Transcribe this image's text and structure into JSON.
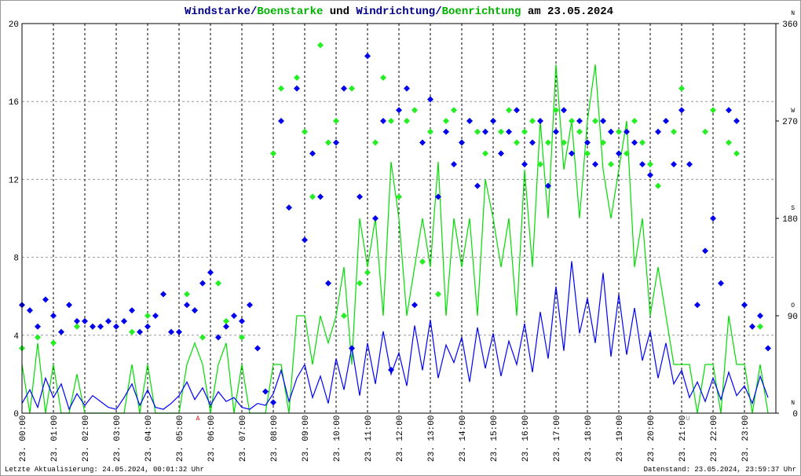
{
  "chart_data": {
    "type": "line",
    "title_parts": [
      {
        "text": "Windstarke/",
        "color": "#00008b"
      },
      {
        "text": "Boenstarke",
        "color": "#00b000"
      },
      {
        "text": " und ",
        "color": "#000000"
      },
      {
        "text": "Windrichtung/",
        "color": "#00008b"
      },
      {
        "text": "Boenrichtung",
        "color": "#00b000"
      },
      {
        "text": " am 23.05.2024",
        "color": "#000000"
      }
    ],
    "x": [
      0,
      0.25,
      0.5,
      0.75,
      1,
      1.25,
      1.5,
      1.75,
      2,
      2.25,
      2.5,
      2.75,
      3,
      3.25,
      3.5,
      3.75,
      4,
      4.25,
      4.5,
      4.75,
      5,
      5.25,
      5.5,
      5.75,
      6,
      6.25,
      6.5,
      6.75,
      7,
      7.25,
      7.5,
      7.75,
      8,
      8.25,
      8.5,
      8.75,
      9,
      9.25,
      9.5,
      9.75,
      10,
      10.25,
      10.5,
      10.75,
      11,
      11.25,
      11.5,
      11.75,
      12,
      12.25,
      12.5,
      12.75,
      13,
      13.25,
      13.5,
      13.75,
      14,
      14.25,
      14.5,
      14.75,
      15,
      15.25,
      15.5,
      15.75,
      16,
      16.25,
      16.5,
      16.75,
      17,
      17.25,
      17.5,
      17.75,
      18,
      18.25,
      18.5,
      18.75,
      19,
      19.25,
      19.5,
      19.75,
      20,
      20.25,
      20.5,
      20.75,
      21,
      21.25,
      21.5,
      21.75,
      22,
      22.25,
      22.5,
      22.75,
      23,
      23.25,
      23.5,
      23.75
    ],
    "series": [
      {
        "color": "#00dd00",
        "mark": "line",
        "values": [
          2.5,
          0,
          3.6,
          0,
          2.5,
          0,
          0,
          2.0,
          0,
          0,
          0,
          0,
          0,
          0,
          2.5,
          0,
          2.5,
          0,
          0,
          0,
          0,
          2.5,
          3.6,
          2.5,
          0,
          2.5,
          3.6,
          0,
          2.5,
          0,
          0,
          0,
          2.5,
          2.5,
          0,
          5.0,
          5.0,
          2.5,
          5.0,
          3.6,
          5.0,
          7.5,
          2.5,
          10.0,
          7.5,
          10.0,
          5.0,
          12.9,
          10.0,
          5.0,
          7.5,
          10.0,
          7.5,
          12.9,
          5.0,
          10.0,
          7.5,
          10.0,
          5.0,
          12.0,
          10.0,
          7.5,
          10.0,
          5.0,
          12.5,
          7.5,
          15.0,
          10.0,
          17.9,
          12.5,
          15.0,
          10.0,
          15.0,
          17.9,
          12.5,
          10.0,
          12.5,
          15.0,
          7.5,
          10.0,
          5.0,
          7.5,
          5.0,
          2.5,
          2.5,
          2.5,
          0,
          2.5,
          2.5,
          0,
          5.0,
          2.5,
          2.5,
          0,
          2.5,
          0
        ]
      },
      {
        "color": "#0000ff",
        "mark": "line",
        "values": [
          0.5,
          1.2,
          0.3,
          1.8,
          0.8,
          1.5,
          0.2,
          1.0,
          0.4,
          0.9,
          0.6,
          0.3,
          0.2,
          0.8,
          1.5,
          0.4,
          1.2,
          0.3,
          0.2,
          0.5,
          0.9,
          1.6,
          0.7,
          1.3,
          0.4,
          1.1,
          0.6,
          0.8,
          0.3,
          0.2,
          0.5,
          0.4,
          1.0,
          2.2,
          0.6,
          1.8,
          2.5,
          0.8,
          1.9,
          0.5,
          2.8,
          1.2,
          3.4,
          0.9,
          3.6,
          1.5,
          4.2,
          2.0,
          3.1,
          1.4,
          4.5,
          2.2,
          4.8,
          1.8,
          3.5,
          2.6,
          3.9,
          1.6,
          4.4,
          2.3,
          4.1,
          1.9,
          3.7,
          2.5,
          4.6,
          2.1,
          5.2,
          2.8,
          6.5,
          3.2,
          7.8,
          4.1,
          5.9,
          3.6,
          7.2,
          2.9,
          6.1,
          3.0,
          5.4,
          2.7,
          4.2,
          1.8,
          3.6,
          1.5,
          2.2,
          0.8,
          1.6,
          0.6,
          1.8,
          0.7,
          2.1,
          0.9,
          1.4,
          0.5,
          1.9,
          0.8
        ]
      },
      {
        "color": "#22ee22",
        "mark": "point",
        "axis": "y2",
        "values": [
          60,
          null,
          70,
          null,
          65,
          null,
          null,
          80,
          null,
          null,
          null,
          null,
          null,
          null,
          75,
          null,
          90,
          null,
          null,
          null,
          null,
          110,
          95,
          70,
          null,
          120,
          85,
          null,
          70,
          null,
          null,
          null,
          240,
          300,
          null,
          310,
          260,
          200,
          340,
          250,
          270,
          90,
          300,
          120,
          130,
          250,
          310,
          270,
          200,
          270,
          280,
          140,
          260,
          110,
          270,
          280,
          250,
          270,
          260,
          240,
          270,
          260,
          280,
          250,
          260,
          270,
          230,
          250,
          280,
          250,
          270,
          260,
          240,
          270,
          250,
          230,
          260,
          240,
          270,
          250,
          230,
          210,
          null,
          260,
          300,
          null,
          null,
          260,
          280,
          null,
          250,
          240,
          100,
          null,
          80,
          null
        ]
      },
      {
        "color": "#0000ee",
        "mark": "point",
        "axis": "y2",
        "values": [
          100,
          95,
          80,
          105,
          90,
          75,
          100,
          85,
          85,
          80,
          80,
          85,
          80,
          85,
          95,
          75,
          80,
          90,
          110,
          75,
          75,
          100,
          95,
          120,
          130,
          70,
          80,
          90,
          85,
          100,
          60,
          20,
          10,
          270,
          190,
          300,
          160,
          240,
          200,
          120,
          250,
          300,
          60,
          200,
          330,
          180,
          270,
          40,
          280,
          300,
          100,
          250,
          290,
          200,
          260,
          230,
          250,
          270,
          210,
          260,
          270,
          240,
          260,
          280,
          230,
          250,
          270,
          210,
          260,
          280,
          240,
          270,
          250,
          230,
          270,
          260,
          240,
          260,
          250,
          230,
          220,
          260,
          270,
          230,
          280,
          230,
          100,
          150,
          180,
          120,
          280,
          270,
          100,
          80,
          90,
          60
        ]
      }
    ],
    "xlim": [
      0,
      24
    ],
    "xticks": [
      {
        "value": 0,
        "label": "23. 00:00"
      },
      {
        "value": 1,
        "label": "23. 01:00"
      },
      {
        "value": 2,
        "label": "23. 02:00"
      },
      {
        "value": 3,
        "label": "23. 03:00"
      },
      {
        "value": 4,
        "label": "23. 04:00"
      },
      {
        "value": 5,
        "label": "23. 05:00"
      },
      {
        "value": 6,
        "label": "23. 06:00"
      },
      {
        "value": 7,
        "label": "23. 07:00"
      },
      {
        "value": 8,
        "label": "23. 08:00"
      },
      {
        "value": 9,
        "label": "23. 09:00"
      },
      {
        "value": 10,
        "label": "23. 10:00"
      },
      {
        "value": 11,
        "label": "23. 11:00"
      },
      {
        "value": 12,
        "label": "23. 12:00"
      },
      {
        "value": 13,
        "label": "23. 13:00"
      },
      {
        "value": 14,
        "label": "23. 14:00"
      },
      {
        "value": 15,
        "label": "23. 15:00"
      },
      {
        "value": 16,
        "label": "23. 16:00"
      },
      {
        "value": 17,
        "label": "23. 17:00"
      },
      {
        "value": 18,
        "label": "23. 18:00"
      },
      {
        "value": 19,
        "label": "23. 19:00"
      },
      {
        "value": 20,
        "label": "23. 20:00"
      },
      {
        "value": 21,
        "label": "23. 21:00"
      },
      {
        "value": 22,
        "label": "23. 22:00"
      },
      {
        "value": 23,
        "label": "23. 23:00"
      }
    ],
    "ylim": [
      0,
      20
    ],
    "yticks": [
      0,
      4,
      8,
      12,
      16,
      20
    ],
    "y2lim": [
      0,
      360
    ],
    "y2ticks": [
      0,
      90,
      180,
      270,
      360
    ],
    "compass": [
      "N",
      "O",
      "S",
      "W",
      "N"
    ],
    "grid": true,
    "annotations": [
      {
        "x": 5.6,
        "text": "A",
        "color": "#dd0000"
      },
      {
        "x": 21.2,
        "text": "U",
        "color": "#888888"
      }
    ],
    "footer_left": "Letzte Aktualisierung: 24.05.2024, 00:01:32 Uhr",
    "footer_right": "Datenstand: 23.05.2024, 23:59:37 Uhr"
  }
}
